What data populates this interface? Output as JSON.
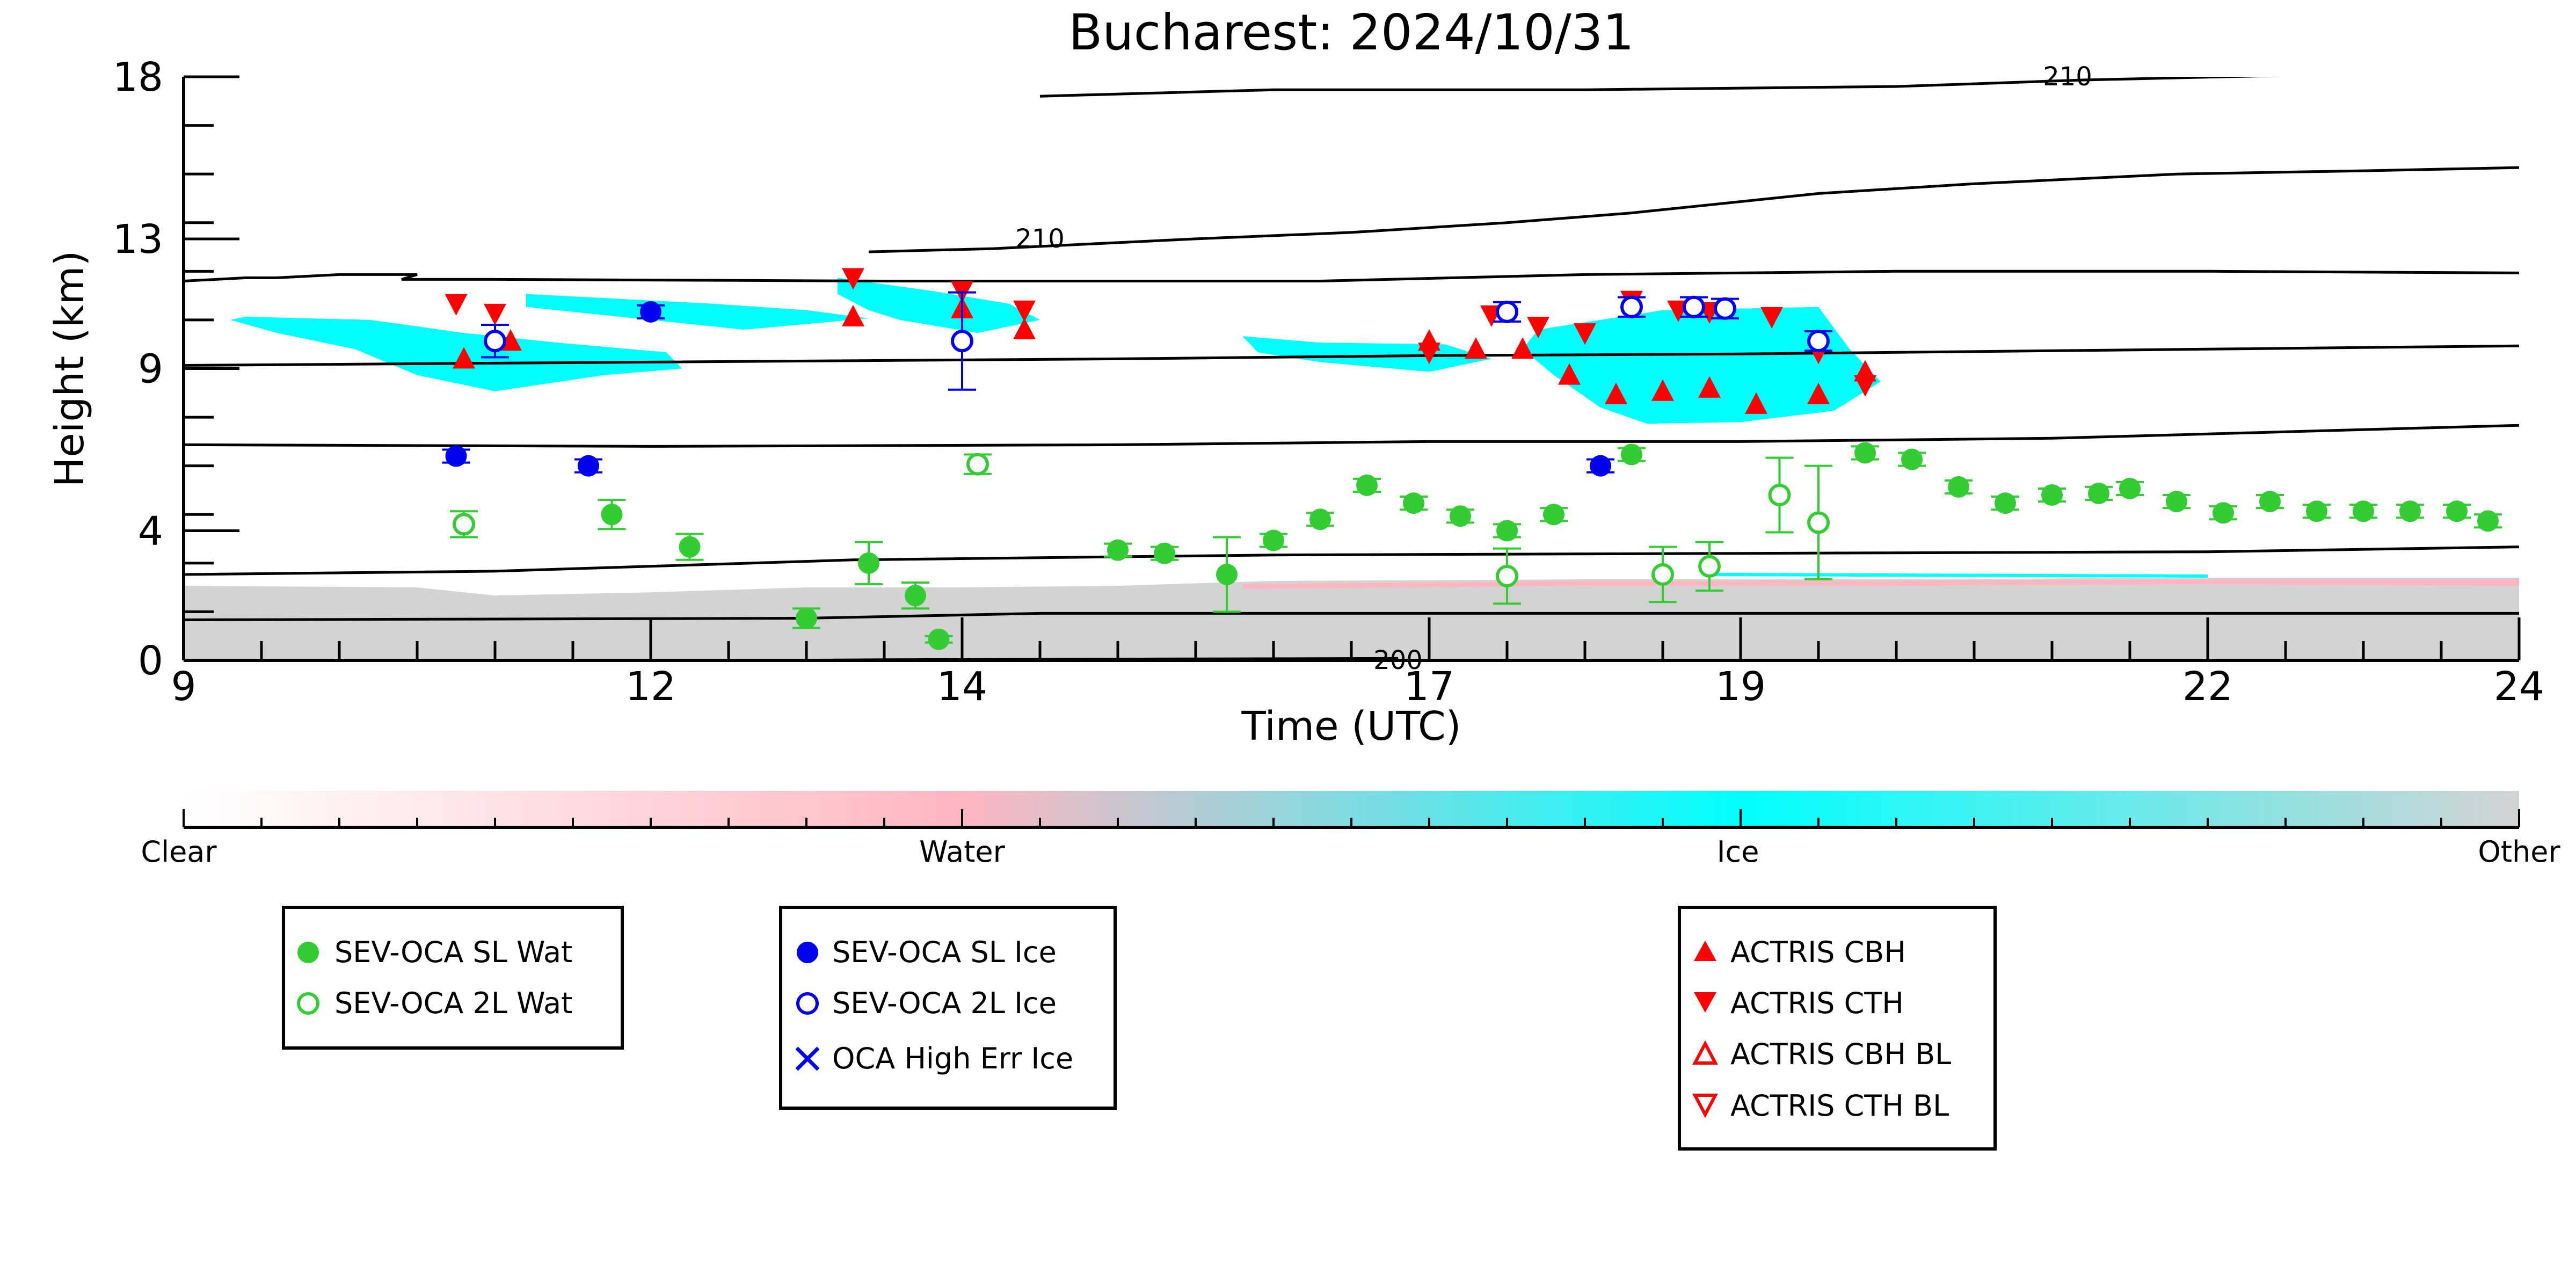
{
  "chart_data": {
    "type": "scatter",
    "title": "Bucharest: 2024/10/31",
    "xlabel": "Time (UTC)",
    "ylabel": "Height (km)",
    "xlim": [
      9,
      24
    ],
    "ylim": [
      0,
      18
    ],
    "x_ticks": [
      9,
      12,
      14,
      17,
      19,
      22,
      24
    ],
    "y_ticks": [
      0,
      4,
      9,
      13,
      18
    ],
    "grid": false,
    "contour_labels": [
      {
        "text": "210",
        "x": 14.5,
        "y": 13.0
      },
      {
        "text": "210",
        "x": 21.1,
        "y": 18.0
      },
      {
        "text": "200",
        "x": 16.8,
        "y": 0.0
      }
    ],
    "colorbar": {
      "labels": [
        "Clear",
        "Water",
        "Ice",
        "Other"
      ],
      "colors": {
        "clear": "#ffffff",
        "water": "#ffb6c1",
        "ice": "#00ffff",
        "other": "#d3d3d3"
      }
    },
    "colors": {
      "sl_wat": "#33cc33",
      "sl_ice": "#0000ee",
      "actris": "#ff0000",
      "other": "#d3d3d3",
      "ice": "#00ffff",
      "water": "#ffb6c1"
    },
    "legends": [
      {
        "position": "lower-left",
        "entries": [
          {
            "label": "SEV-OCA SL Wat",
            "marker": "filled-circle",
            "color": "#33cc33"
          },
          {
            "label": "SEV-OCA 2L Wat",
            "marker": "open-circle",
            "color": "#33cc33"
          }
        ]
      },
      {
        "position": "lower-center-left",
        "entries": [
          {
            "label": "SEV-OCA SL Ice",
            "marker": "filled-circle",
            "color": "#0000ee"
          },
          {
            "label": "SEV-OCA 2L Ice",
            "marker": "open-circle",
            "color": "#0000ee"
          },
          {
            "label": "OCA High Err Ice",
            "marker": "x",
            "color": "#0000ee"
          }
        ]
      },
      {
        "position": "lower-center-right",
        "entries": [
          {
            "label": "ACTRIS CBH",
            "marker": "triangle-up",
            "color": "#ff0000"
          },
          {
            "label": "ACTRIS CTH",
            "marker": "triangle-down",
            "color": "#ff0000"
          },
          {
            "label": "ACTRIS CBH BL",
            "marker": "open-triangle-up",
            "color": "#ff0000"
          },
          {
            "label": "ACTRIS CTH BL",
            "marker": "open-triangle-down",
            "color": "#ff0000"
          }
        ]
      }
    ],
    "series": [
      {
        "name": "SEV-OCA SL Wat",
        "marker": "filled-circle",
        "color": "#33cc33",
        "points": [
          {
            "x": 11.75,
            "y": 4.5,
            "e": 0.45
          },
          {
            "x": 12.25,
            "y": 3.5,
            "e": 0.4
          },
          {
            "x": 13.0,
            "y": 1.3,
            "e": 0.3
          },
          {
            "x": 13.4,
            "y": 3.0,
            "e": 0.65
          },
          {
            "x": 13.7,
            "y": 2.0,
            "e": 0.4
          },
          {
            "x": 13.85,
            "y": 0.65,
            "e": 0.1
          },
          {
            "x": 15.0,
            "y": 3.4,
            "e": 0.2
          },
          {
            "x": 15.3,
            "y": 3.3,
            "e": 0.2
          },
          {
            "x": 15.7,
            "y": 2.65,
            "e": 1.15
          },
          {
            "x": 16.0,
            "y": 3.7,
            "e": 0.2
          },
          {
            "x": 16.3,
            "y": 4.35,
            "e": 0.2
          },
          {
            "x": 16.6,
            "y": 5.4,
            "e": 0.2
          },
          {
            "x": 16.9,
            "y": 4.85,
            "e": 0.2
          },
          {
            "x": 17.2,
            "y": 4.45,
            "e": 0.2
          },
          {
            "x": 17.5,
            "y": 4.0,
            "e": 0.2
          },
          {
            "x": 17.8,
            "y": 4.5,
            "e": 0.2
          },
          {
            "x": 18.3,
            "y": 6.35,
            "e": 0.2
          },
          {
            "x": 19.8,
            "y": 6.4,
            "e": 0.2
          },
          {
            "x": 20.1,
            "y": 6.2,
            "e": 0.2
          },
          {
            "x": 20.4,
            "y": 5.35,
            "e": 0.2
          },
          {
            "x": 20.7,
            "y": 4.85,
            "e": 0.2
          },
          {
            "x": 21.0,
            "y": 5.1,
            "e": 0.2
          },
          {
            "x": 21.3,
            "y": 5.15,
            "e": 0.2
          },
          {
            "x": 21.5,
            "y": 5.3,
            "e": 0.2
          },
          {
            "x": 21.8,
            "y": 4.9,
            "e": 0.2
          },
          {
            "x": 22.1,
            "y": 4.55,
            "e": 0.2
          },
          {
            "x": 22.4,
            "y": 4.9,
            "e": 0.2
          },
          {
            "x": 22.7,
            "y": 4.6,
            "e": 0.2
          },
          {
            "x": 23.0,
            "y": 4.6,
            "e": 0.2
          },
          {
            "x": 23.3,
            "y": 4.6,
            "e": 0.2
          },
          {
            "x": 23.6,
            "y": 4.6,
            "e": 0.2
          },
          {
            "x": 23.8,
            "y": 4.3,
            "e": 0.2
          }
        ]
      },
      {
        "name": "SEV-OCA 2L Wat",
        "marker": "open-circle",
        "color": "#33cc33",
        "points": [
          {
            "x": 10.8,
            "y": 4.2,
            "e": 0.4
          },
          {
            "x": 14.1,
            "y": 6.05,
            "e": 0.3
          },
          {
            "x": 17.5,
            "y": 2.6,
            "e": 0.85
          },
          {
            "x": 18.5,
            "y": 2.65,
            "e": 0.85
          },
          {
            "x": 18.8,
            "y": 2.9,
            "e": 0.75
          },
          {
            "x": 19.25,
            "y": 5.1,
            "e": 1.15
          },
          {
            "x": 19.5,
            "y": 4.25,
            "e": 1.75
          }
        ]
      },
      {
        "name": "SEV-OCA SL Ice",
        "marker": "filled-circle",
        "color": "#0000ee",
        "points": [
          {
            "x": 10.75,
            "y": 6.3,
            "e": 0.2
          },
          {
            "x": 11.6,
            "y": 6.0,
            "e": 0.2
          },
          {
            "x": 12.0,
            "y": 10.75,
            "e": 0.2
          },
          {
            "x": 18.1,
            "y": 6.0,
            "e": 0.2
          }
        ]
      },
      {
        "name": "SEV-OCA 2L Ice",
        "marker": "open-circle",
        "color": "#0000ee",
        "points": [
          {
            "x": 11.0,
            "y": 9.85,
            "e": 0.5
          },
          {
            "x": 14.0,
            "y": 9.85,
            "e": 1.5
          },
          {
            "x": 17.5,
            "y": 10.75,
            "e": 0.3
          },
          {
            "x": 18.3,
            "y": 10.9,
            "e": 0.3
          },
          {
            "x": 18.7,
            "y": 10.9,
            "e": 0.3
          },
          {
            "x": 18.9,
            "y": 10.85,
            "e": 0.3
          },
          {
            "x": 19.5,
            "y": 9.85,
            "e": 0.3
          }
        ]
      },
      {
        "name": "ACTRIS CBH",
        "marker": "triangle-up",
        "color": "#ff0000",
        "points": [
          {
            "x": 10.8,
            "y": 9.3
          },
          {
            "x": 11.1,
            "y": 9.85
          },
          {
            "x": 13.3,
            "y": 10.6
          },
          {
            "x": 14.0,
            "y": 10.85
          },
          {
            "x": 14.4,
            "y": 10.2
          },
          {
            "x": 17.0,
            "y": 9.85
          },
          {
            "x": 17.3,
            "y": 9.6
          },
          {
            "x": 17.6,
            "y": 9.6
          },
          {
            "x": 17.9,
            "y": 8.8
          },
          {
            "x": 18.2,
            "y": 8.2
          },
          {
            "x": 18.5,
            "y": 8.3
          },
          {
            "x": 18.8,
            "y": 8.4
          },
          {
            "x": 19.1,
            "y": 7.9
          },
          {
            "x": 19.5,
            "y": 8.2
          },
          {
            "x": 19.8,
            "y": 8.9
          }
        ]
      },
      {
        "name": "ACTRIS CTH",
        "marker": "triangle-down",
        "color": "#ff0000",
        "points": [
          {
            "x": 10.75,
            "y": 11.0
          },
          {
            "x": 11.0,
            "y": 10.7
          },
          {
            "x": 13.3,
            "y": 11.8
          },
          {
            "x": 14.0,
            "y": 11.4
          },
          {
            "x": 14.4,
            "y": 10.8
          },
          {
            "x": 17.0,
            "y": 9.5
          },
          {
            "x": 17.4,
            "y": 10.65
          },
          {
            "x": 17.7,
            "y": 10.3
          },
          {
            "x": 18.0,
            "y": 10.1
          },
          {
            "x": 18.3,
            "y": 11.1
          },
          {
            "x": 18.6,
            "y": 10.8
          },
          {
            "x": 18.8,
            "y": 10.75
          },
          {
            "x": 19.2,
            "y": 10.6
          },
          {
            "x": 19.5,
            "y": 9.5
          },
          {
            "x": 19.8,
            "y": 8.5
          }
        ]
      }
    ]
  }
}
